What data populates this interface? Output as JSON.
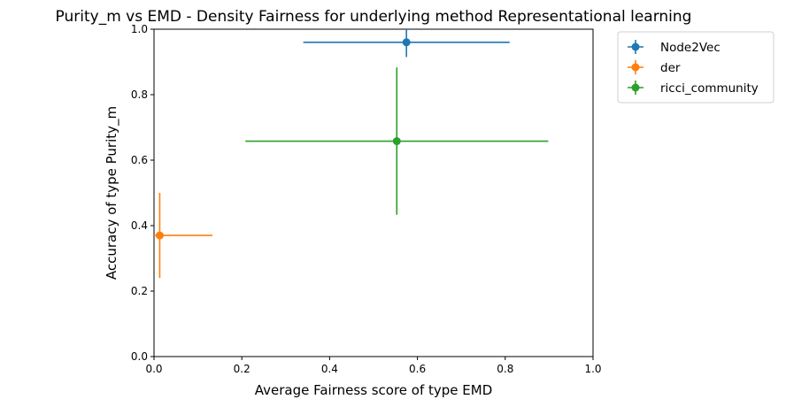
{
  "chart_data": {
    "type": "scatter",
    "title": "Purity_m vs EMD - Density Fairness for underlying method Representational learning",
    "xlabel": "Average Fairness score of type EMD",
    "ylabel": "Accuracy of type Purity_m",
    "xlim": [
      0.0,
      1.0
    ],
    "ylim": [
      0.0,
      1.0
    ],
    "xticks": [
      "0.0",
      "0.2",
      "0.4",
      "0.6",
      "0.8",
      "1.0"
    ],
    "yticks": [
      "0.0",
      "0.2",
      "0.4",
      "0.6",
      "0.8",
      "1.0"
    ],
    "grid": false,
    "legend_position": "outside-top-right",
    "error_bars": true,
    "series": [
      {
        "name": "Node2Vec",
        "color": "#1f77b4",
        "x": 0.575,
        "y": 0.96,
        "xerr": 0.235,
        "yerr": 0.045
      },
      {
        "name": "der",
        "color": "#ff7f0e",
        "x": 0.013,
        "y": 0.37,
        "xerr": 0.12,
        "yerr": 0.13
      },
      {
        "name": "ricci_community",
        "color": "#2ca02c",
        "x": 0.553,
        "y": 0.658,
        "xerr": 0.345,
        "yerr": 0.225
      }
    ]
  }
}
